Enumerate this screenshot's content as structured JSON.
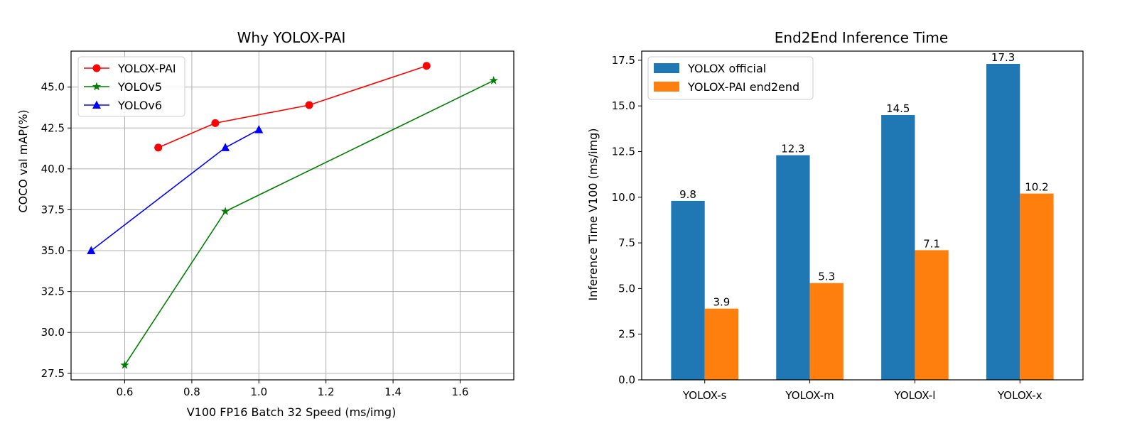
{
  "chart_data": [
    {
      "type": "line",
      "title": "Why YOLOX-PAI",
      "xlabel": "V100 FP16 Batch 32 Speed (ms/img)",
      "ylabel": "COCO val mAP(%)",
      "xlim": [
        0.44,
        1.76
      ],
      "ylim": [
        27.1,
        47.2
      ],
      "xticks": [
        "0.6",
        "0.8",
        "1.0",
        "1.2",
        "1.4",
        "1.6"
      ],
      "yticks": [
        "27.5",
        "30.0",
        "32.5",
        "35.0",
        "37.5",
        "40.0",
        "42.5",
        "45.0"
      ],
      "grid": true,
      "legend": "upper left",
      "series": [
        {
          "name": "YOLOX-PAI",
          "color": "#ff0000",
          "marker": "circle",
          "x": [
            0.7,
            0.87,
            1.15,
            1.5
          ],
          "y": [
            41.3,
            42.8,
            43.9,
            46.3
          ]
        },
        {
          "name": "YOLOv5",
          "color": "#008000",
          "marker": "star",
          "x": [
            0.6,
            0.9,
            1.7
          ],
          "y": [
            28.0,
            37.4,
            45.4
          ]
        },
        {
          "name": "YOLOv6",
          "color": "#0000ff",
          "marker": "triangle",
          "x": [
            0.5,
            0.9,
            1.0
          ],
          "y": [
            35.0,
            41.3,
            42.4
          ]
        }
      ]
    },
    {
      "type": "bar",
      "title": "End2End Inference Time",
      "xlabel": "",
      "ylabel": "Inference Time V100 (ms/img)",
      "categories": [
        "YOLOX-s",
        "YOLOX-m",
        "YOLOX-l",
        "YOLOX-x"
      ],
      "ylim": [
        0,
        18.0
      ],
      "yticks": [
        "0.0",
        "2.5",
        "5.0",
        "7.5",
        "10.0",
        "12.5",
        "15.0",
        "17.5"
      ],
      "grid": false,
      "legend": "upper left",
      "series": [
        {
          "name": "YOLOX official",
          "color": "#1f77b4",
          "values": [
            9.8,
            12.3,
            14.5,
            17.3
          ],
          "labels": [
            "9.8",
            "12.3",
            "14.5",
            "17.3"
          ]
        },
        {
          "name": "YOLOX-PAI end2end",
          "color": "#ff7f0e",
          "values": [
            3.9,
            5.3,
            7.1,
            10.2
          ],
          "labels": [
            "3.9",
            "5.3",
            "7.1",
            "10.2"
          ]
        }
      ]
    }
  ]
}
